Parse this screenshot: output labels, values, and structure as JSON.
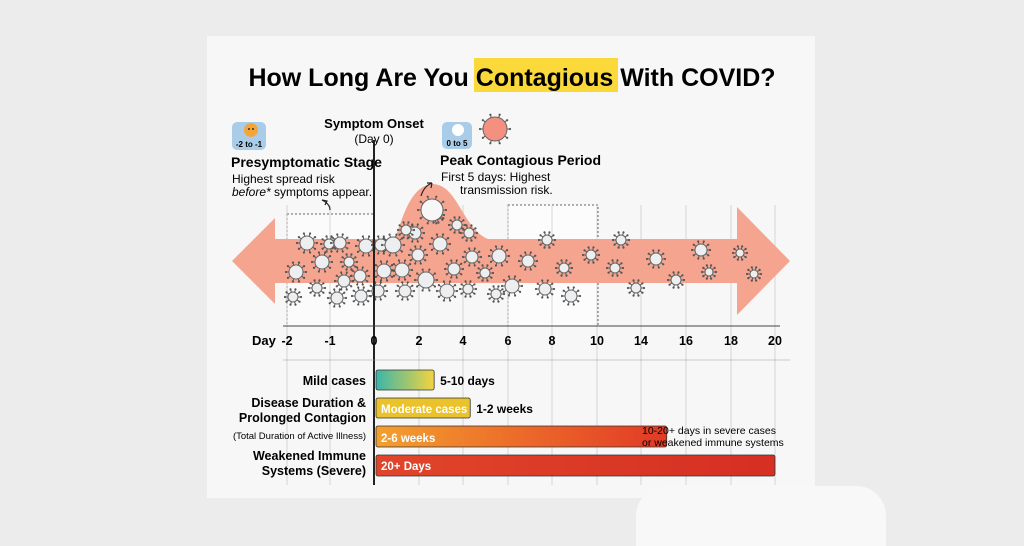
{
  "title": {
    "before": "How Long Are You ",
    "highlight": "Contagious",
    "after": " With COVID?"
  },
  "onset": {
    "label": "Symptom Onset",
    "sub": "(Day 0)"
  },
  "presymptomatic": {
    "badge": "-2 to -1",
    "heading": "Presymptomatic Stage",
    "line1": "Highest spread risk",
    "line2_italic": "before*",
    "line2_rest": " symptoms appear."
  },
  "peak": {
    "badge": "0 to 5",
    "heading": "Peak Contagious Period",
    "line1": "First 5 days: Highest",
    "line2": "transmission risk."
  },
  "axis": {
    "label": "Day",
    "ticks": [
      "-2",
      "-1",
      "0",
      "2",
      "4",
      "6",
      "8",
      "10",
      "14",
      "16",
      "18",
      "20"
    ]
  },
  "chart_data": {
    "type": "bar",
    "categories": [
      "Mild cases",
      "Moderate cases",
      "2-6 weeks",
      "20+ Days"
    ],
    "series": [
      {
        "values": [
          3,
          4.8,
          14.6,
          20
        ]
      }
    ]
  },
  "durations": {
    "mild": {
      "label": "Mild cases",
      "value": "5-10 days",
      "end": 3
    },
    "group_label1": "Disease Duration &",
    "group_label2": "Prolonged Contagion",
    "group_sub": "(Total Duration of Active Illness)",
    "moderate": {
      "bar_text": "Moderate cases",
      "value": "1-2 weeks",
      "end": 4.8
    },
    "prolonged": {
      "bar_text": "2-6 weeks",
      "note1": "10-20+ days in severe cases",
      "note2": "or weakened immune systems",
      "end": 14.6
    },
    "severe": {
      "label1": "Weakened Immune",
      "label2": "Systems (Severe)",
      "bar_text": "20+ Days",
      "end": 20
    }
  },
  "colors": {
    "arrow": "#f5a58f",
    "highlight": "#fbd93a",
    "mild_start": "#3bb6a8",
    "mild_end": "#f3d33f",
    "moderate": "#e9c22c",
    "prolonged_start": "#f08a2c",
    "prolonged_end": "#e23a26",
    "severe": "#db3326"
  },
  "icons": [
    "virus-icon",
    "face-icon",
    "curved-arrow-icon"
  ]
}
